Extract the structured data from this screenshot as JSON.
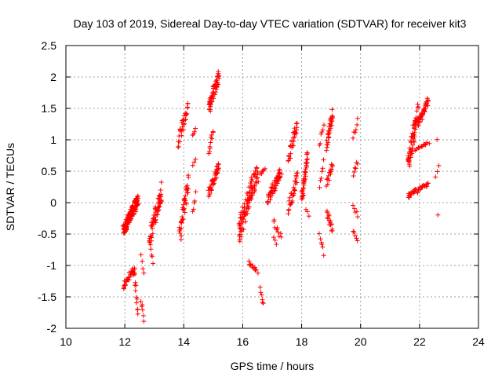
{
  "chart_data": {
    "type": "scatter",
    "title": "Day 103 of 2019, Sidereal Day-to-day VTEC variation (SDTVAR) for receiver kit3",
    "xlabel": "GPS time / hours",
    "ylabel": "SDTVAR / TECUs",
    "xlim": [
      10,
      24
    ],
    "ylim": [
      -2,
      2.5
    ],
    "xticks": [
      "10",
      "12",
      "14",
      "16",
      "18",
      "20",
      "22",
      "24"
    ],
    "yticks": [
      "-2",
      "-1.5",
      "-1",
      "-0.5",
      "0",
      "0.5",
      "1",
      "1.5",
      "2",
      "2.5"
    ],
    "grid": true,
    "marker": "+",
    "colors": {
      "points": "#ff0000",
      "grid": "#a0a0a0",
      "axes": "#000000"
    },
    "segments": [
      {
        "x0": 11.95,
        "x1": 12.45,
        "y0": -0.45,
        "y1": 0.05,
        "n": 140
      },
      {
        "x0": 11.95,
        "x1": 12.3,
        "y0": -1.35,
        "y1": -1.05,
        "n": 30
      },
      {
        "x0": 12.3,
        "x1": 12.45,
        "y0": -1.05,
        "y1": -1.7,
        "n": 14
      },
      {
        "x0": 12.55,
        "x1": 12.65,
        "y0": -1.55,
        "y1": -1.85,
        "n": 6
      },
      {
        "x0": 12.55,
        "x1": 12.65,
        "y0": -0.85,
        "y1": -1.15,
        "n": 4
      },
      {
        "x0": 12.85,
        "x1": 13.25,
        "y0": -0.55,
        "y1": 0.2,
        "n": 60
      },
      {
        "x0": 12.85,
        "x1": 12.95,
        "y0": -0.65,
        "y1": -0.95,
        "n": 6
      },
      {
        "x0": 13.8,
        "x1": 14.15,
        "y0": 0.95,
        "y1": 1.55,
        "n": 32
      },
      {
        "x0": 13.85,
        "x1": 14.15,
        "y0": -0.55,
        "y1": 0.35,
        "n": 40
      },
      {
        "x0": 14.3,
        "x1": 14.4,
        "y0": 1.05,
        "y1": 1.2,
        "n": 4
      },
      {
        "x0": 14.3,
        "x1": 14.4,
        "y0": 0.6,
        "y1": 0.7,
        "n": 3
      },
      {
        "x0": 14.3,
        "x1": 14.4,
        "y0": -0.15,
        "y1": 0.15,
        "n": 5
      },
      {
        "x0": 14.85,
        "x1": 15.2,
        "y0": 1.5,
        "y1": 2.05,
        "n": 55
      },
      {
        "x0": 14.85,
        "x1": 15.2,
        "y0": 0.15,
        "y1": 0.6,
        "n": 40
      },
      {
        "x0": 14.85,
        "x1": 15.0,
        "y0": 0.8,
        "y1": 1.15,
        "n": 10
      },
      {
        "x0": 15.85,
        "x1": 16.5,
        "y0": -0.5,
        "y1": 0.5,
        "n": 100
      },
      {
        "x0": 16.2,
        "x1": 16.5,
        "y0": -0.95,
        "y1": -1.1,
        "n": 12
      },
      {
        "x0": 16.6,
        "x1": 16.75,
        "y0": 0.45,
        "y1": 0.55,
        "n": 6
      },
      {
        "x0": 16.6,
        "x1": 16.7,
        "y0": -1.35,
        "y1": -1.65,
        "n": 6
      },
      {
        "x0": 16.85,
        "x1": 17.3,
        "y0": 0.05,
        "y1": 0.5,
        "n": 50
      },
      {
        "x0": 17.05,
        "x1": 17.3,
        "y0": -0.3,
        "y1": -0.55,
        "n": 10
      },
      {
        "x0": 17.05,
        "x1": 17.15,
        "y0": -0.55,
        "y1": -0.65,
        "n": 3
      },
      {
        "x0": 17.55,
        "x1": 17.85,
        "y0": 0.7,
        "y1": 1.25,
        "n": 30
      },
      {
        "x0": 17.55,
        "x1": 17.85,
        "y0": -0.1,
        "y1": 0.45,
        "n": 30
      },
      {
        "x0": 18.0,
        "x1": 18.2,
        "y0": 0.05,
        "y1": 0.75,
        "n": 40
      },
      {
        "x0": 18.15,
        "x1": 18.25,
        "y0": -0.1,
        "y1": -0.2,
        "n": 3
      },
      {
        "x0": 18.6,
        "x1": 18.75,
        "y0": 0.9,
        "y1": 1.25,
        "n": 6
      },
      {
        "x0": 18.6,
        "x1": 18.75,
        "y0": 0.3,
        "y1": 0.65,
        "n": 6
      },
      {
        "x0": 18.6,
        "x1": 18.75,
        "y0": -0.5,
        "y1": -0.8,
        "n": 6
      },
      {
        "x0": 18.85,
        "x1": 19.05,
        "y0": 0.9,
        "y1": 1.45,
        "n": 30
      },
      {
        "x0": 18.85,
        "x1": 19.05,
        "y0": 0.3,
        "y1": 0.6,
        "n": 15
      },
      {
        "x0": 18.85,
        "x1": 19.05,
        "y0": -0.15,
        "y1": -0.45,
        "n": 15
      },
      {
        "x0": 19.75,
        "x1": 19.9,
        "y0": 1.05,
        "y1": 1.3,
        "n": 6
      },
      {
        "x0": 19.75,
        "x1": 19.9,
        "y0": 0.45,
        "y1": 0.65,
        "n": 6
      },
      {
        "x0": 19.75,
        "x1": 19.9,
        "y0": -0.05,
        "y1": -0.2,
        "n": 5
      },
      {
        "x0": 19.75,
        "x1": 19.9,
        "y0": -0.45,
        "y1": -0.6,
        "n": 5
      },
      {
        "x0": 21.6,
        "x1": 21.95,
        "y0": 0.6,
        "y1": 1.45,
        "n": 60
      },
      {
        "x0": 21.95,
        "x1": 22.3,
        "y0": 1.25,
        "y1": 1.62,
        "n": 40
      },
      {
        "x0": 21.85,
        "x1": 22.3,
        "y0": 0.85,
        "y1": 0.95,
        "n": 15
      },
      {
        "x0": 21.6,
        "x1": 22.3,
        "y0": 0.1,
        "y1": 0.3,
        "n": 40
      },
      {
        "x0": 22.55,
        "x1": 22.65,
        "y0": 1.0,
        "y1": 1.0,
        "n": 1
      },
      {
        "x0": 22.55,
        "x1": 22.65,
        "y0": 0.4,
        "y1": 0.6,
        "n": 3
      },
      {
        "x0": 22.6,
        "x1": 22.65,
        "y0": -0.18,
        "y1": -0.18,
        "n": 1
      }
    ]
  }
}
